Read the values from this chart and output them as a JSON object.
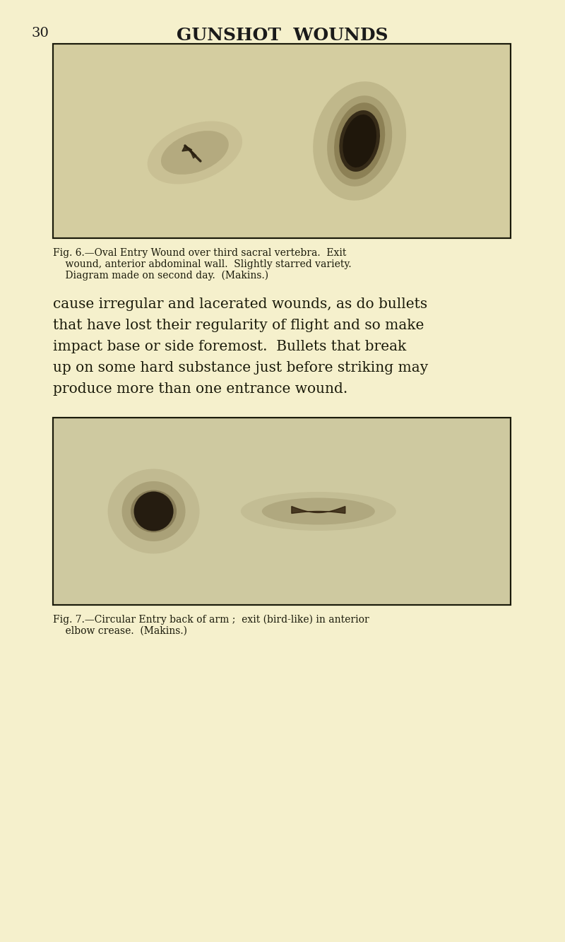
{
  "bg_color": "#f5f0cc",
  "page_number": "30",
  "title": "GUNSHOT  WOUNDS",
  "title_fontsize": 18,
  "page_num_fontsize": 14,
  "fig6_caption_line1": "Fig. 6.—Oval Entry Wound over third sacral vertebra.  Exit",
  "fig6_caption_line2": "    wound, anterior abdominal wall.  Slightly starred variety.",
  "fig6_caption_line3": "    Diagram made on second day.  (Makins.)",
  "fig7_caption_line1": "Fig. 7.—Circular Entry back of arm ;  exit (bird-like) in anterior",
  "fig7_caption_line2": "    elbow crease.  (Makins.)",
  "body_text": [
    "cause irregular and lacerated wounds, as do bullets",
    "that have lost their regularity of flight and so make",
    "impact base or side foremost.  Bullets that break",
    "up on some hard substance just before striking may",
    "produce more than one entrance wound."
  ],
  "photo_bg1": "#d4cda0",
  "photo_bg2": "#cec9a0",
  "caption_fontsize": 10,
  "body_fontsize": 14.5
}
